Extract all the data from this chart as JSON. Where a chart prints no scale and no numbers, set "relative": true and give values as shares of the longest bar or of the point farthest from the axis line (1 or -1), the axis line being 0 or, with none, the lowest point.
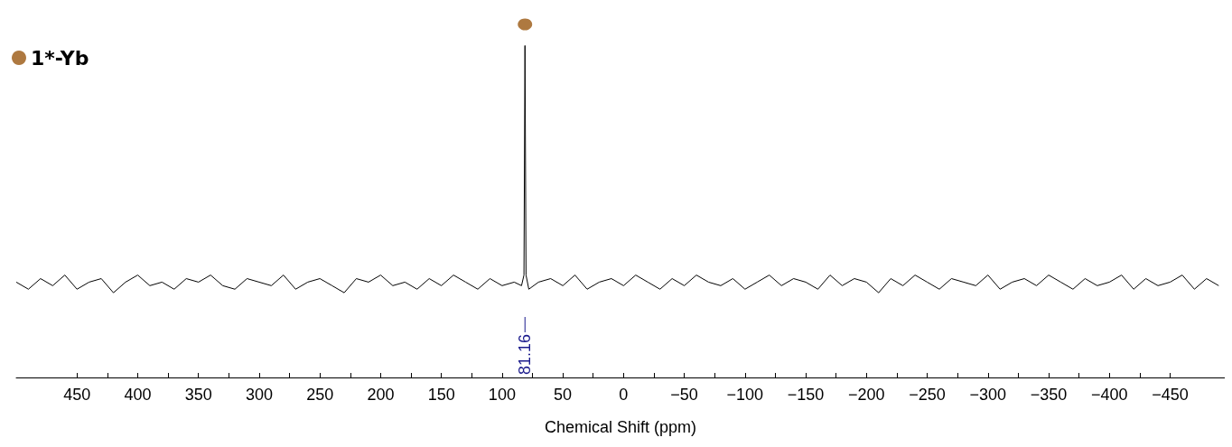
{
  "chart_data": {
    "type": "line",
    "relative": true,
    "xlabel": "Chemical Shift (ppm)",
    "xlim": [
      500,
      -495
    ],
    "xticks": [
      450,
      400,
      350,
      300,
      250,
      200,
      150,
      100,
      50,
      0,
      {
        "value": -50,
        "label": "−50"
      },
      {
        "value": -100,
        "label": "−100"
      },
      {
        "value": -150,
        "label": "−150"
      },
      {
        "value": -200,
        "label": "−200"
      },
      {
        "value": -250,
        "label": "−250"
      },
      {
        "value": -300,
        "label": "−300"
      },
      {
        "value": -350,
        "label": "−350"
      },
      {
        "value": -400,
        "label": "−400"
      },
      {
        "value": -450,
        "label": "−450"
      }
    ],
    "tick_labels": "x",
    "grid": false,
    "legend": "top left",
    "marker": "none",
    "annotations": [
      {
        "text": "81.16",
        "x": 81.16
      }
    ],
    "series": [
      {
        "color": "#000000",
        "x": [
          500,
          490,
          480,
          470,
          460,
          450,
          440,
          430,
          420,
          410,
          400,
          390,
          380,
          370,
          360,
          350,
          340,
          330,
          320,
          310,
          300,
          290,
          280,
          270,
          260,
          250,
          240,
          230,
          220,
          210,
          200,
          190,
          180,
          170,
          160,
          150,
          140,
          130,
          120,
          110,
          100,
          90,
          84,
          82,
          81.16,
          80.3,
          78,
          70,
          60,
          50,
          40,
          30,
          20,
          10,
          0,
          -10,
          -20,
          -30,
          -40,
          -50,
          -60,
          -70,
          -80,
          -90,
          -100,
          -110,
          -120,
          -130,
          -140,
          -150,
          -160,
          -170,
          -180,
          -190,
          -200,
          -210,
          -220,
          -230,
          -240,
          -250,
          -260,
          -270,
          -280,
          -290,
          -300,
          -310,
          -320,
          -330,
          -340,
          -350,
          -360,
          -370,
          -380,
          -390,
          -400,
          -410,
          -420,
          -430,
          -440,
          -450,
          -460,
          -470,
          -480,
          -490
        ],
        "values": [
          0.27,
          0.25,
          0.28,
          0.26,
          0.29,
          0.25,
          0.27,
          0.28,
          0.24,
          0.27,
          0.29,
          0.26,
          0.27,
          0.25,
          0.28,
          0.27,
          0.29,
          0.26,
          0.25,
          0.28,
          0.27,
          0.26,
          0.29,
          0.25,
          0.27,
          0.28,
          0.26,
          0.24,
          0.28,
          0.27,
          0.29,
          0.26,
          0.27,
          0.25,
          0.28,
          0.26,
          0.29,
          0.27,
          0.25,
          0.28,
          0.26,
          0.27,
          0.26,
          0.29,
          0.94,
          0.29,
          0.25,
          0.27,
          0.28,
          0.26,
          0.29,
          0.25,
          0.27,
          0.28,
          0.26,
          0.29,
          0.27,
          0.25,
          0.28,
          0.26,
          0.29,
          0.27,
          0.26,
          0.28,
          0.25,
          0.27,
          0.29,
          0.26,
          0.28,
          0.27,
          0.25,
          0.29,
          0.26,
          0.28,
          0.27,
          0.24,
          0.28,
          0.26,
          0.29,
          0.27,
          0.25,
          0.28,
          0.27,
          0.26,
          0.29,
          0.25,
          0.27,
          0.28,
          0.26,
          0.29,
          0.27,
          0.25,
          0.28,
          0.26,
          0.27,
          0.29,
          0.25,
          0.28,
          0.26,
          0.27,
          0.29,
          0.25,
          0.28,
          0.26
        ]
      },
      {
        "name": "1*-Yb",
        "color": "#9a5710",
        "type": "scatter",
        "marker": "circle",
        "x": [
          81.16
        ],
        "values": [
          1
        ]
      }
    ]
  }
}
